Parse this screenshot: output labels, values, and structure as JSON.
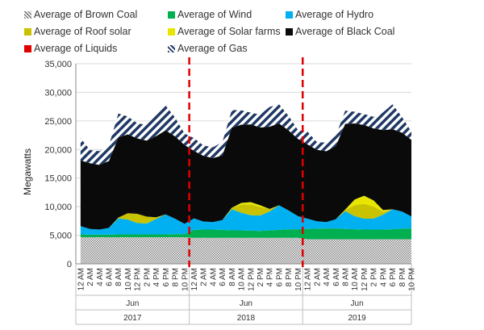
{
  "chart_data": {
    "type": "area",
    "ylabel": "Megawatts",
    "ylim": [
      0,
      35000
    ],
    "yticks": [
      0,
      5000,
      10000,
      15000,
      20000,
      25000,
      30000,
      35000
    ],
    "ytick_labels": [
      "0",
      "5,000",
      "10,000",
      "15,000",
      "20,000",
      "25,000",
      "30,000",
      "35,000"
    ],
    "grid": "horizontal",
    "legend_position": "top",
    "x_hours": [
      "12 AM",
      "2 AM",
      "4 AM",
      "6 AM",
      "8 AM",
      "10 AM",
      "12 PM",
      "2 PM",
      "4 PM",
      "6 PM",
      "8 PM",
      "10 PM"
    ],
    "x_month": "Jun",
    "groups": [
      "2017",
      "2018",
      "2019"
    ],
    "stack_order": [
      "Average of Brown Coal",
      "Average of Wind",
      "Average of Hydro",
      "Average of Roof solar",
      "Average of Solar farms",
      "Average of Black Coal",
      "Average of Liquids",
      "Average of Gas"
    ],
    "legend_order": [
      "Average of Brown Coal",
      "Average of Wind",
      "Average of Hydro",
      "Average of Roof solar",
      "Average of Solar farms",
      "Average of Black Coal",
      "Average of Liquids",
      "Average of Gas"
    ],
    "series": [
      {
        "name": "Average of Brown Coal",
        "color": "#a6a6a6",
        "pattern": "crosshatch",
        "values": [
          [
            4650,
            4650,
            4650,
            4650,
            4650,
            4650,
            4650,
            4650,
            4650,
            4650,
            4650,
            4650
          ],
          [
            4550,
            4550,
            4550,
            4550,
            4550,
            4550,
            4550,
            4550,
            4550,
            4550,
            4550,
            4550
          ],
          [
            4300,
            4300,
            4300,
            4300,
            4300,
            4300,
            4300,
            4300,
            4300,
            4300,
            4300,
            4300
          ]
        ]
      },
      {
        "name": "Average of Wind",
        "color": "#00b050",
        "values": [
          [
            500,
            450,
            450,
            450,
            500,
            500,
            500,
            500,
            500,
            500,
            550,
            550
          ],
          [
            1400,
            1450,
            1450,
            1400,
            1300,
            1300,
            1250,
            1200,
            1300,
            1400,
            1500,
            1500
          ],
          [
            1800,
            1850,
            1900,
            1900,
            1800,
            1750,
            1700,
            1700,
            1700,
            1750,
            1850,
            1900
          ]
        ]
      },
      {
        "name": "Average of Hydro",
        "color": "#00b0f0",
        "values": [
          [
            1450,
            1000,
            900,
            1200,
            2800,
            2600,
            2000,
            1900,
            2700,
            3500,
            2700,
            1800
          ],
          [
            2000,
            1400,
            1300,
            1700,
            3700,
            3100,
            2700,
            2700,
            3300,
            4300,
            3300,
            2300
          ],
          [
            1800,
            1300,
            1100,
            1600,
            3100,
            2300,
            1900,
            1900,
            2600,
            3500,
            3000,
            2100
          ]
        ]
      },
      {
        "name": "Average of Roof solar",
        "color": "#c9c200",
        "values": [
          [
            0,
            0,
            0,
            0,
            150,
            1100,
            1600,
            1200,
            300,
            0,
            0,
            0
          ],
          [
            0,
            0,
            0,
            0,
            200,
            1400,
            1900,
            1500,
            400,
            0,
            0,
            0
          ],
          [
            0,
            0,
            0,
            0,
            200,
            1900,
            2600,
            2100,
            500,
            0,
            0,
            0
          ]
        ]
      },
      {
        "name": "Average of Solar farms",
        "color": "#e8e600",
        "values": [
          [
            0,
            0,
            0,
            0,
            0,
            0,
            0,
            0,
            0,
            0,
            0,
            0
          ],
          [
            0,
            0,
            0,
            0,
            50,
            300,
            400,
            300,
            50,
            0,
            0,
            0
          ],
          [
            0,
            0,
            0,
            0,
            100,
            1000,
            1400,
            1100,
            300,
            0,
            0,
            0
          ]
        ]
      },
      {
        "name": "Average of Black Coal",
        "color": "#0a0a0a",
        "values": [
          [
            11500,
            11500,
            11300,
            11700,
            14000,
            13800,
            13200,
            13300,
            14200,
            14700,
            14400,
            13800
          ],
          [
            11800,
            11500,
            11200,
            11300,
            14000,
            13700,
            13600,
            13600,
            14400,
            14300,
            14000,
            13500
          ],
          [
            13000,
            12500,
            12400,
            12800,
            15000,
            13300,
            12400,
            12600,
            14000,
            14000,
            13800,
            13400
          ]
        ]
      },
      {
        "name": "Average of Liquids",
        "color": "#e00000",
        "values": [
          [
            0,
            0,
            0,
            0,
            0,
            0,
            0,
            0,
            0,
            0,
            0,
            0
          ],
          [
            0,
            0,
            0,
            0,
            0,
            0,
            0,
            0,
            0,
            0,
            0,
            0
          ],
          [
            0,
            0,
            0,
            0,
            0,
            0,
            0,
            0,
            0,
            0,
            0,
            0
          ]
        ]
      },
      {
        "name": "Average of Gas",
        "color": "#1f3864",
        "pattern": "diagonal",
        "values": [
          [
            3900,
            2300,
            2400,
            2700,
            4200,
            3100,
            2650,
            2750,
            4150,
            4350,
            3300,
            2000
          ],
          [
            2250,
            1800,
            1900,
            2300,
            3100,
            2500,
            2050,
            2250,
            3450,
            3350,
            2550,
            1550
          ],
          [
            2250,
            1350,
            1500,
            1800,
            2300,
            2050,
            1900,
            2000,
            3100,
            4350,
            2750,
            1400
          ]
        ]
      }
    ],
    "dividers_after_group": [
      0,
      1
    ],
    "divider_color": "#e00000"
  }
}
